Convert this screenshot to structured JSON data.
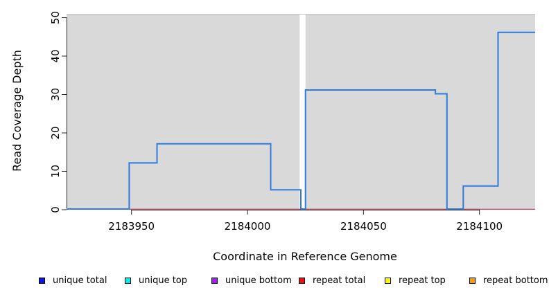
{
  "chart_data": {
    "type": "line",
    "subtype": "step-coverage",
    "title": "",
    "xlabel": "Coordinate in Reference Genome",
    "ylabel": "Read Coverage Depth",
    "xlim": [
      2183922,
      2184124
    ],
    "ylim": [
      0,
      51
    ],
    "x_ticks": [
      2183950,
      2184000,
      2184050,
      2184100
    ],
    "y_ticks": [
      0,
      10,
      20,
      30,
      40,
      50
    ],
    "grid": false,
    "plot_bg": "#d9d9d9",
    "plot_top_border_color": "#c4c4c4",
    "axis_color": "#222222",
    "gap_region": {
      "x_from": 2184022.5,
      "x_to": 2184025,
      "color": "#ffffff"
    },
    "series": [
      {
        "name": "unique total",
        "color": "#2f7ae0",
        "type": "step",
        "steps": [
          [
            2183922,
            0
          ],
          [
            2183949,
            12
          ],
          [
            2183961,
            17
          ],
          [
            2184010,
            5
          ],
          [
            2184023,
            0
          ],
          [
            2184025,
            31
          ],
          [
            2184081,
            30
          ],
          [
            2184086,
            0
          ],
          [
            2184093,
            6
          ],
          [
            2184108,
            46
          ]
        ],
        "end_x": 2184124
      },
      {
        "name": "repeat total",
        "color": "#dc4666",
        "type": "constant",
        "value": 0,
        "x_from": 2183922,
        "x_to": 2184124
      }
    ],
    "legend_position": "bottom"
  },
  "legend": {
    "items": [
      {
        "label": "unique total",
        "color": "#1414e0"
      },
      {
        "label": "unique top",
        "color": "#00eeee"
      },
      {
        "label": "unique bottom",
        "color": "#a020f0"
      },
      {
        "label": "repeat total",
        "color": "#ee1111"
      },
      {
        "label": "repeat top",
        "color": "#ffff00"
      },
      {
        "label": "repeat bottom",
        "color": "#f5a302"
      }
    ]
  }
}
